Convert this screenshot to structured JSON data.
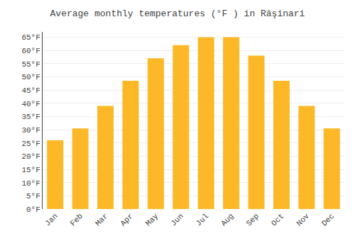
{
  "chart_data": {
    "type": "bar",
    "title": "Average monthly temperatures (°F ) in Răşinari",
    "categories": [
      "Jan",
      "Feb",
      "Mar",
      "Apr",
      "May",
      "Jun",
      "Jul",
      "Aug",
      "Sep",
      "Oct",
      "Nov",
      "Dec"
    ],
    "values": [
      26,
      30.5,
      39,
      48.5,
      57,
      62,
      65,
      65,
      58,
      48.5,
      39,
      30.5
    ],
    "color": "#FDB827",
    "ylim": [
      0,
      67
    ],
    "yticks": [
      {
        "value": 0,
        "label": "0°F"
      },
      {
        "value": 5,
        "label": "5°F"
      },
      {
        "value": 10,
        "label": "10°F"
      },
      {
        "value": 15,
        "label": "15°F"
      },
      {
        "value": 20,
        "label": "20°F"
      },
      {
        "value": 25,
        "label": "25°F"
      },
      {
        "value": 30,
        "label": "30°F"
      },
      {
        "value": 35,
        "label": "35°F"
      },
      {
        "value": 40,
        "label": "40°F"
      },
      {
        "value": 45,
        "label": "45°F"
      },
      {
        "value": 50,
        "label": "50°F"
      },
      {
        "value": 55,
        "label": "55°F"
      },
      {
        "value": 60,
        "label": "60°F"
      },
      {
        "value": 65,
        "label": "65°F"
      }
    ],
    "grid": true
  }
}
